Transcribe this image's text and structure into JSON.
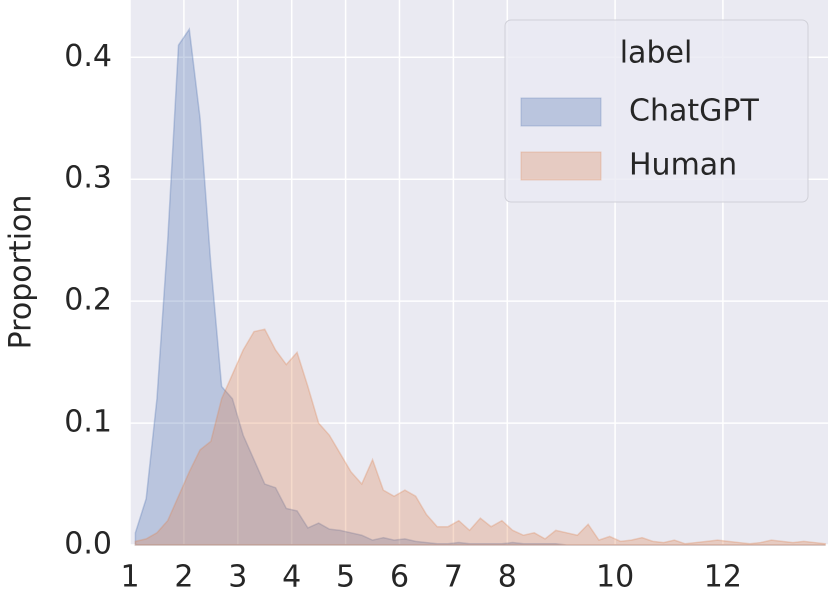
{
  "chart_data": {
    "type": "area",
    "ylabel": "Proportion",
    "x": [
      1.1,
      1.3,
      1.5,
      1.7,
      1.9,
      2.1,
      2.3,
      2.5,
      2.7,
      2.9,
      3.1,
      3.3,
      3.5,
      3.7,
      3.9,
      4.1,
      4.3,
      4.5,
      4.7,
      4.9,
      5.1,
      5.3,
      5.5,
      5.7,
      5.9,
      6.1,
      6.3,
      6.5,
      6.7,
      6.9,
      7.1,
      7.3,
      7.5,
      7.7,
      7.9,
      8.1,
      8.3,
      8.5,
      8.7,
      8.9,
      9.1,
      9.3,
      9.5,
      9.7,
      9.9,
      10.1,
      10.3,
      10.5,
      10.7,
      10.9,
      11.1,
      11.3,
      11.5,
      11.7,
      11.9,
      12.1,
      12.3,
      12.5,
      12.7,
      12.9,
      13.1,
      13.3,
      13.5,
      13.7,
      13.9
    ],
    "series": [
      {
        "name": "ChatGPT",
        "color": "#4c72b0",
        "values": [
          0.01,
          0.038,
          0.12,
          0.25,
          0.41,
          0.423,
          0.35,
          0.23,
          0.13,
          0.12,
          0.09,
          0.07,
          0.05,
          0.047,
          0.03,
          0.028,
          0.014,
          0.018,
          0.013,
          0.012,
          0.01,
          0.008,
          0.004,
          0.006,
          0.004,
          0.005,
          0.003,
          0.002,
          0.001,
          0.001,
          0.002,
          0.001,
          0.001,
          0.001,
          0.001,
          0.002,
          0.001,
          0.001,
          0.001,
          0.001,
          0,
          0,
          0,
          0,
          0,
          0,
          0,
          0,
          0,
          0,
          0,
          0,
          0,
          0,
          0,
          0,
          0,
          0,
          0,
          0,
          0,
          0,
          0,
          0,
          0
        ]
      },
      {
        "name": "Human",
        "color": "#dd8452",
        "values": [
          0.003,
          0.005,
          0.01,
          0.02,
          0.04,
          0.06,
          0.078,
          0.085,
          0.12,
          0.14,
          0.16,
          0.175,
          0.177,
          0.16,
          0.148,
          0.158,
          0.13,
          0.1,
          0.09,
          0.075,
          0.06,
          0.05,
          0.07,
          0.045,
          0.04,
          0.045,
          0.04,
          0.025,
          0.015,
          0.015,
          0.02,
          0.012,
          0.022,
          0.015,
          0.02,
          0.012,
          0.008,
          0.01,
          0.005,
          0.012,
          0.01,
          0.008,
          0.017,
          0.004,
          0.007,
          0.003,
          0.004,
          0.006,
          0.003,
          0.002,
          0.004,
          0.001,
          0.002,
          0.003,
          0.004,
          0.003,
          0.002,
          0.001,
          0.002,
          0.004,
          0.003,
          0.002,
          0.003,
          0.002,
          0.001
        ]
      }
    ],
    "legend_title": "label",
    "legend": "upper right",
    "xlim": [
      1,
      13.95
    ],
    "xticks": [
      1,
      2,
      3,
      4,
      5,
      6,
      7,
      8,
      10,
      12
    ],
    "ylim": [
      0,
      0.447
    ],
    "yticks": [
      {
        "value": 0,
        "label": "0.0"
      },
      0.1,
      0.2,
      0.3,
      0.4
    ],
    "grid": true
  }
}
